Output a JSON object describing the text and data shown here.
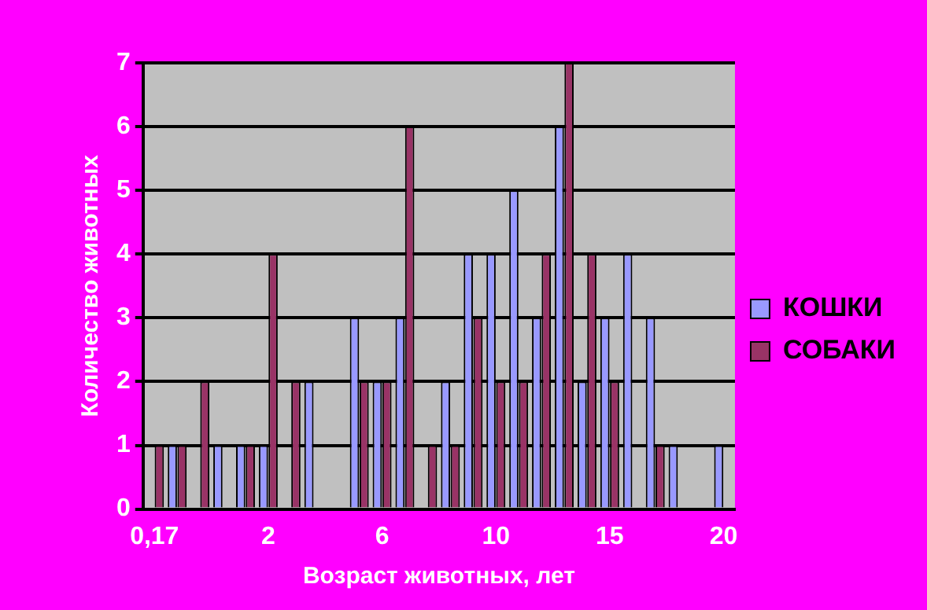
{
  "chart_data": {
    "type": "bar",
    "xlabel": "Возраст животных, лет",
    "ylabel": "Количество животных",
    "categories": [
      "0,17",
      null,
      null,
      null,
      null,
      "2",
      null,
      null,
      null,
      null,
      "6",
      null,
      null,
      null,
      null,
      "10",
      null,
      null,
      null,
      null,
      "15",
      null,
      null,
      null,
      null,
      "20"
    ],
    "series": [
      {
        "name": "КОШКИ",
        "color": "#9999ff",
        "values": [
          0,
          1,
          0,
          1,
          1,
          1,
          0,
          2,
          0,
          3,
          2,
          3,
          0,
          2,
          4,
          4,
          5,
          3,
          6,
          2,
          3,
          4,
          3,
          1,
          0,
          1
        ]
      },
      {
        "name": "СОБАКИ",
        "color": "#993366",
        "values": [
          1,
          1,
          2,
          0,
          1,
          4,
          2,
          0,
          0,
          2,
          2,
          6,
          1,
          1,
          3,
          2,
          2,
          4,
          7,
          4,
          2,
          0,
          1,
          0,
          0,
          0
        ]
      }
    ],
    "ylim": [
      0,
      7
    ],
    "yticks": [
      0,
      1,
      2,
      3,
      4,
      5,
      6,
      7
    ],
    "grid": "y",
    "legend": "right"
  }
}
